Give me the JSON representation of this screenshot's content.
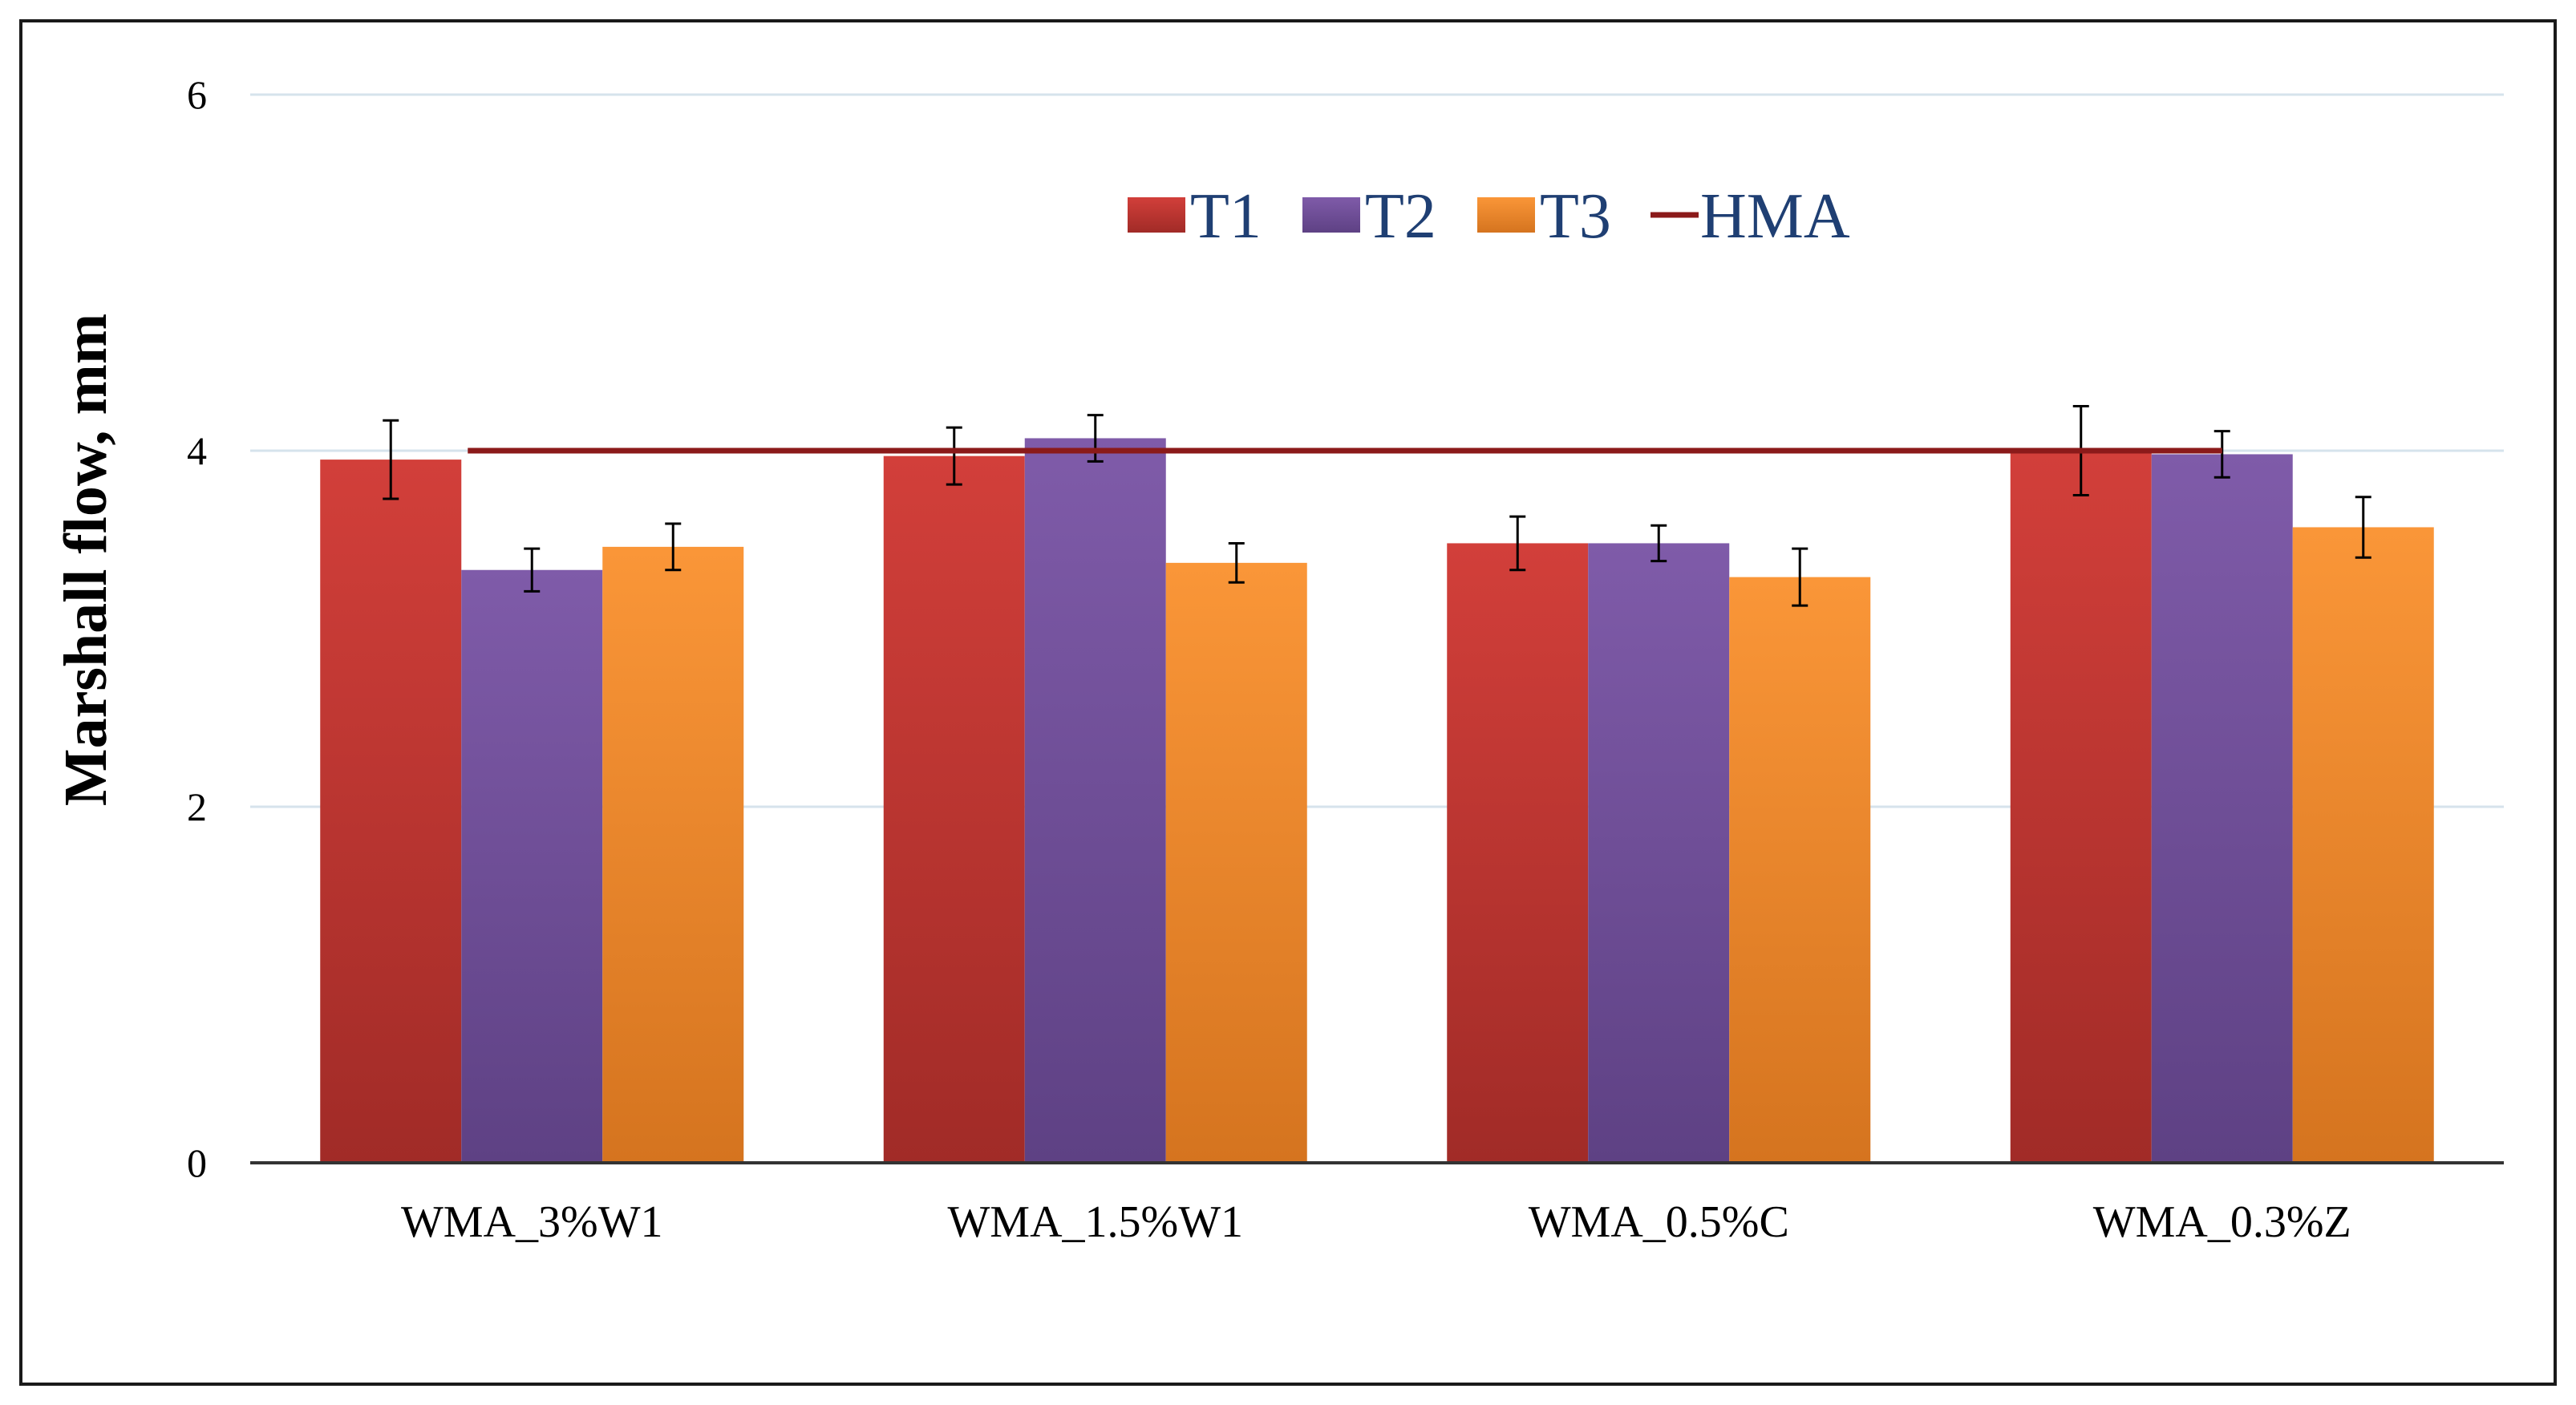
{
  "chart_data": {
    "type": "bar",
    "title": "",
    "xlabel": "",
    "ylabel": "Marshall flow, mm",
    "ylim": [
      0,
      6
    ],
    "yticks": [
      0,
      2,
      4,
      6
    ],
    "grid": true,
    "legend_position": "top-center",
    "categories": [
      "WMA_3%W1",
      "WMA_1.5%W1",
      "WMA_0.5%C",
      "WMA_0.3%Z"
    ],
    "series": [
      {
        "name": "T1",
        "color": "#c0392b",
        "values": [
          3.95,
          3.97,
          3.48,
          4.0
        ],
        "errors": [
          0.22,
          0.16,
          0.15,
          0.25
        ]
      },
      {
        "name": "T2",
        "color": "#7b56a6",
        "values": [
          3.33,
          4.07,
          3.48,
          3.98
        ],
        "errors": [
          0.12,
          0.13,
          0.1,
          0.13
        ]
      },
      {
        "name": "T3",
        "color": "#f39232",
        "values": [
          3.46,
          3.37,
          3.29,
          3.57
        ],
        "errors": [
          0.13,
          0.11,
          0.16,
          0.17
        ]
      }
    ],
    "reference_line": {
      "name": "HMA",
      "value": 4.0,
      "color": "#8b1a1a"
    }
  }
}
